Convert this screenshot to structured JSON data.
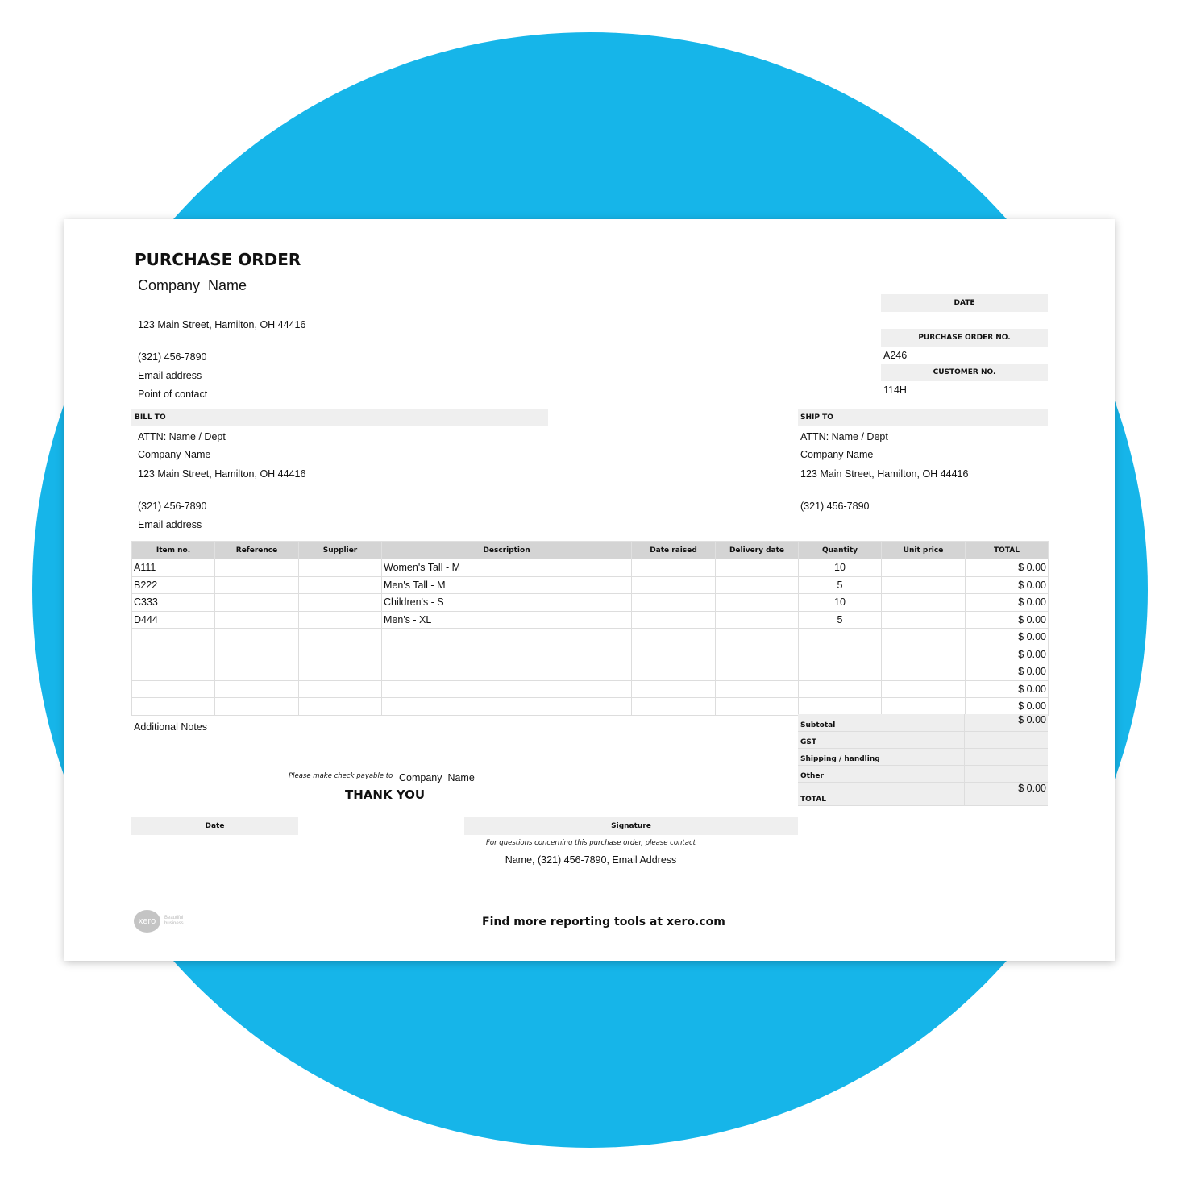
{
  "title": "PURCHASE ORDER",
  "company": {
    "name": "Company  Name",
    "address": "123 Main Street, Hamilton, OH 44416",
    "phone": "(321) 456-7890",
    "email": "Email address",
    "contact": "Point of contact"
  },
  "meta": {
    "date_label": "DATE",
    "date_value": "",
    "po_label": "PURCHASE ORDER NO.",
    "po_value": "A246",
    "customer_label": "CUSTOMER NO.",
    "customer_value": "114H"
  },
  "bill_to": {
    "label": "BILL TO",
    "attn": "ATTN: Name / Dept",
    "company": "Company Name",
    "address": "123 Main Street, Hamilton, OH 44416",
    "phone": "(321) 456-7890",
    "email": "Email address"
  },
  "ship_to": {
    "label": "SHIP TO",
    "attn": "ATTN: Name / Dept",
    "company": "Company Name",
    "address": "123 Main Street, Hamilton, OH 44416",
    "phone": "(321) 456-7890"
  },
  "table": {
    "headers": [
      "Item no.",
      "Reference",
      "Supplier",
      "Description",
      "Date raised",
      "Delivery date",
      "Quantity",
      "Unit price",
      "TOTAL"
    ],
    "rows": [
      [
        "A111",
        "",
        "",
        "Women's Tall - M",
        "",
        "",
        "10",
        "",
        "$ 0.00"
      ],
      [
        "B222",
        "",
        "",
        "Men's Tall - M",
        "",
        "",
        "5",
        "",
        "$ 0.00"
      ],
      [
        "C333",
        "",
        "",
        "Children's - S",
        "",
        "",
        "10",
        "",
        "$ 0.00"
      ],
      [
        "D444",
        "",
        "",
        "Men's - XL",
        "",
        "",
        "5",
        "",
        "$ 0.00"
      ],
      [
        "",
        "",
        "",
        "",
        "",
        "",
        "",
        "",
        "$ 0.00"
      ],
      [
        "",
        "",
        "",
        "",
        "",
        "",
        "",
        "",
        "$ 0.00"
      ],
      [
        "",
        "",
        "",
        "",
        "",
        "",
        "",
        "",
        "$ 0.00"
      ],
      [
        "",
        "",
        "",
        "",
        "",
        "",
        "",
        "",
        "$ 0.00"
      ],
      [
        "",
        "",
        "",
        "",
        "",
        "",
        "",
        "",
        "$ 0.00"
      ]
    ]
  },
  "summary": [
    {
      "label": "Subtotal",
      "value": "$ 0.00"
    },
    {
      "label": "GST",
      "value": ""
    },
    {
      "label": "Shipping / handling",
      "value": ""
    },
    {
      "label": "Other",
      "value": ""
    },
    {
      "label": "TOTAL",
      "value": "$ 0.00"
    }
  ],
  "notes_label": "Additional Notes",
  "payable_text": "Please make check payable to",
  "payable_name": "Company  Name",
  "thank_you": "THANK YOU",
  "date_box": "Date",
  "signature_box": "Signature",
  "questions": "For questions concerning this purchase order, please contact",
  "contact_line": "Name, (321) 456-7890, Email Address",
  "footer": "Find more reporting tools at xero.com",
  "logo": {
    "text": "xero",
    "tagline": "Beautiful business"
  },
  "colors": {
    "background_circle": "#16b5e9",
    "header_fill": "#d4d4d4",
    "label_fill": "#efefef"
  }
}
